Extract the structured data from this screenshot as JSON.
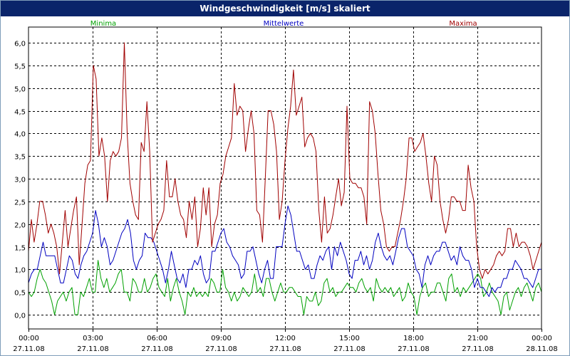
{
  "window": {
    "title": "Windgeschwindigkeit [m/s] skaliert"
  },
  "chart_data": {
    "type": "line",
    "title": "Windgeschwindigkeit [m/s] skaliert",
    "xlabel": "",
    "ylabel": "",
    "ylim": [
      -0.3,
      6.3
    ],
    "xlim": [
      0,
      24
    ],
    "grid": true,
    "legend": "top",
    "y_ticks": [
      "0,0",
      "0,5",
      "1,0",
      "1,5",
      "2,0",
      "2,5",
      "3,0",
      "3,5",
      "4,0",
      "4,5",
      "5,0",
      "5,5",
      "6,0"
    ],
    "x_ticks": [
      {
        "time": "00:00",
        "date": "27.11.08"
      },
      {
        "time": "03:00",
        "date": "27.11.08"
      },
      {
        "time": "06:00",
        "date": "27.11.08"
      },
      {
        "time": "09:00",
        "date": "27.11.08"
      },
      {
        "time": "12:00",
        "date": "27.11.08"
      },
      {
        "time": "15:00",
        "date": "27.11.08"
      },
      {
        "time": "18:00",
        "date": "27.11.08"
      },
      {
        "time": "21:00",
        "date": "27.11.08"
      },
      {
        "time": "00:00",
        "date": "28.11.08"
      }
    ],
    "series": [
      {
        "name": "Minima",
        "color": "#00a000",
        "values": [
          0.5,
          0.4,
          0.5,
          0.8,
          1.0,
          0.8,
          0.7,
          0.5,
          0.3,
          0.0,
          0.3,
          0.4,
          0.5,
          0.3,
          0.5,
          0.6,
          0.0,
          0.0,
          0.5,
          0.4,
          0.6,
          0.8,
          0.5,
          0.5,
          1.2,
          0.8,
          0.6,
          0.8,
          0.5,
          0.6,
          0.7,
          0.9,
          1.0,
          0.5,
          0.5,
          0.3,
          0.8,
          0.7,
          0.5,
          0.5,
          0.8,
          0.5,
          0.6,
          0.8,
          0.9,
          0.6,
          0.5,
          0.4,
          0.8,
          0.3,
          0.6,
          0.8,
          0.5,
          0.3,
          0.0,
          0.5,
          0.4,
          0.6,
          0.4,
          0.5,
          0.4,
          0.5,
          0.4,
          0.8,
          0.7,
          0.5,
          0.5,
          1.0,
          0.6,
          0.5,
          0.3,
          0.5,
          0.3,
          0.4,
          0.6,
          0.5,
          0.4,
          0.5,
          0.9,
          0.5,
          0.6,
          0.4,
          0.8,
          0.8,
          0.5,
          0.3,
          0.5,
          0.7,
          0.5,
          0.5,
          0.6,
          0.6,
          0.5,
          0.4,
          0.4,
          0.0,
          0.4,
          0.3,
          0.3,
          0.5,
          0.2,
          0.3,
          0.7,
          0.8,
          0.5,
          0.6,
          0.4,
          0.5,
          0.5,
          0.6,
          0.7,
          0.6,
          0.6,
          0.5,
          0.7,
          0.8,
          0.6,
          0.5,
          0.6,
          0.3,
          0.8,
          0.6,
          0.5,
          0.6,
          0.5,
          0.6,
          0.4,
          0.5,
          0.6,
          0.3,
          0.4,
          0.7,
          0.5,
          0.4,
          0.0,
          0.4,
          0.6,
          0.7,
          0.4,
          0.5,
          0.5,
          0.7,
          0.7,
          0.5,
          0.3,
          0.8,
          0.9,
          0.5,
          0.6,
          0.4,
          0.6,
          0.5,
          0.6,
          0.7,
          0.8,
          0.9,
          0.8,
          0.4,
          0.5,
          0.7,
          0.5,
          0.4,
          0.3,
          0.0,
          0.4,
          0.5,
          0.1,
          0.3,
          0.5,
          0.6,
          0.4,
          0.6,
          0.7,
          0.5,
          0.3,
          0.6,
          0.7,
          0.5
        ]
      },
      {
        "name": "Mittelwerte",
        "color": "#0000c0",
        "values": [
          0.7,
          0.9,
          1.0,
          1.0,
          1.3,
          1.6,
          1.3,
          1.3,
          1.3,
          1.3,
          1.0,
          0.7,
          0.7,
          1.0,
          1.3,
          1.2,
          0.9,
          0.8,
          1.1,
          1.3,
          1.4,
          1.6,
          1.8,
          2.3,
          2.0,
          1.5,
          1.7,
          1.5,
          1.1,
          1.2,
          1.4,
          1.6,
          1.8,
          1.9,
          2.1,
          1.8,
          1.2,
          1.0,
          1.2,
          1.3,
          1.8,
          1.7,
          1.7,
          1.6,
          1.4,
          1.2,
          1.0,
          0.7,
          1.0,
          1.4,
          1.1,
          0.8,
          0.7,
          0.9,
          0.6,
          1.0,
          1.0,
          1.2,
          1.1,
          1.3,
          0.9,
          0.7,
          0.8,
          1.4,
          1.4,
          1.6,
          1.8,
          1.9,
          1.6,
          1.5,
          1.3,
          1.2,
          1.1,
          0.8,
          0.9,
          1.4,
          1.4,
          1.5,
          1.2,
          0.9,
          0.7,
          1.0,
          1.2,
          0.8,
          0.8,
          1.5,
          1.5,
          1.5,
          2.0,
          2.4,
          2.2,
          1.8,
          1.4,
          1.4,
          1.2,
          1.0,
          1.1,
          0.8,
          0.8,
          1.1,
          1.3,
          1.2,
          1.4,
          1.5,
          1.0,
          1.5,
          1.3,
          1.6,
          1.4,
          1.2,
          0.9,
          0.8,
          1.2,
          1.2,
          1.4,
          1.1,
          1.3,
          1.0,
          1.2,
          1.6,
          1.8,
          1.5,
          1.3,
          1.2,
          1.3,
          1.1,
          1.4,
          1.7,
          1.9,
          1.9,
          1.5,
          1.4,
          1.3,
          1.0,
          0.9,
          0.6,
          1.1,
          1.3,
          1.1,
          1.3,
          1.4,
          1.4,
          1.6,
          1.6,
          1.4,
          1.2,
          1.3,
          1.1,
          1.5,
          1.3,
          1.2,
          1.2,
          1.0,
          0.6,
          0.8,
          0.6,
          0.6,
          0.5,
          0.4,
          0.6,
          0.5,
          0.6,
          0.6,
          0.8,
          0.8,
          1.0,
          1.0,
          1.2,
          1.1,
          1.0,
          0.8,
          0.8,
          0.7,
          0.6,
          0.8,
          1.0,
          1.0
        ]
      },
      {
        "name": "Maxima",
        "color": "#a00000",
        "values": [
          1.4,
          2.1,
          1.6,
          2.0,
          2.5,
          2.5,
          2.2,
          1.8,
          2.0,
          1.8,
          1.5,
          0.9,
          1.6,
          2.3,
          1.5,
          1.9,
          2.3,
          2.6,
          1.1,
          2.0,
          2.9,
          3.3,
          3.4,
          5.5,
          5.2,
          3.5,
          3.9,
          3.5,
          2.5,
          3.4,
          3.6,
          3.5,
          3.6,
          3.9,
          6.0,
          4.0,
          2.9,
          2.5,
          2.2,
          2.1,
          3.8,
          3.6,
          4.7,
          3.6,
          1.6,
          1.8,
          2.0,
          2.1,
          2.3,
          3.4,
          2.6,
          2.6,
          3.0,
          2.5,
          2.2,
          2.1,
          1.7,
          2.5,
          2.1,
          2.6,
          1.5,
          1.9,
          2.8,
          2.2,
          2.8,
          1.5,
          2.0,
          2.2,
          2.9,
          3.1,
          3.5,
          3.7,
          3.9,
          5.1,
          4.4,
          4.6,
          4.5,
          3.6,
          4.1,
          4.5,
          4.0,
          2.3,
          2.2,
          1.6,
          3.0,
          4.5,
          4.5,
          4.2,
          3.6,
          2.1,
          2.5,
          3.4,
          4.1,
          4.6,
          5.4,
          4.4,
          4.6,
          4.8,
          3.7,
          3.9,
          4.0,
          3.9,
          3.6,
          2.3,
          1.6,
          2.6,
          1.8,
          1.9,
          2.2,
          2.6,
          3.0,
          2.4,
          2.7,
          4.6,
          3.0,
          2.9,
          2.9,
          2.8,
          2.8,
          2.6,
          2.0,
          4.7,
          4.5,
          4.0,
          3.1,
          2.3,
          2.0,
          1.5,
          1.4,
          1.5,
          1.5,
          1.8,
          2.1,
          2.5,
          3.0,
          3.9,
          3.9,
          3.6,
          3.7,
          3.8,
          4.0,
          3.5,
          2.9,
          2.5,
          3.5,
          3.3,
          2.5,
          2.1,
          1.8,
          2.1,
          2.6,
          2.6,
          2.5,
          2.5,
          2.3,
          2.3,
          3.3,
          2.8,
          2.5,
          1.5,
          1.0,
          0.8,
          1.0,
          0.9,
          1.0,
          1.1,
          1.3,
          1.4,
          1.3,
          1.4,
          1.9,
          1.9,
          1.5,
          1.8,
          1.5,
          1.6,
          1.6,
          1.5,
          1.3,
          1.0,
          1.2,
          1.4,
          1.6
        ]
      }
    ]
  }
}
